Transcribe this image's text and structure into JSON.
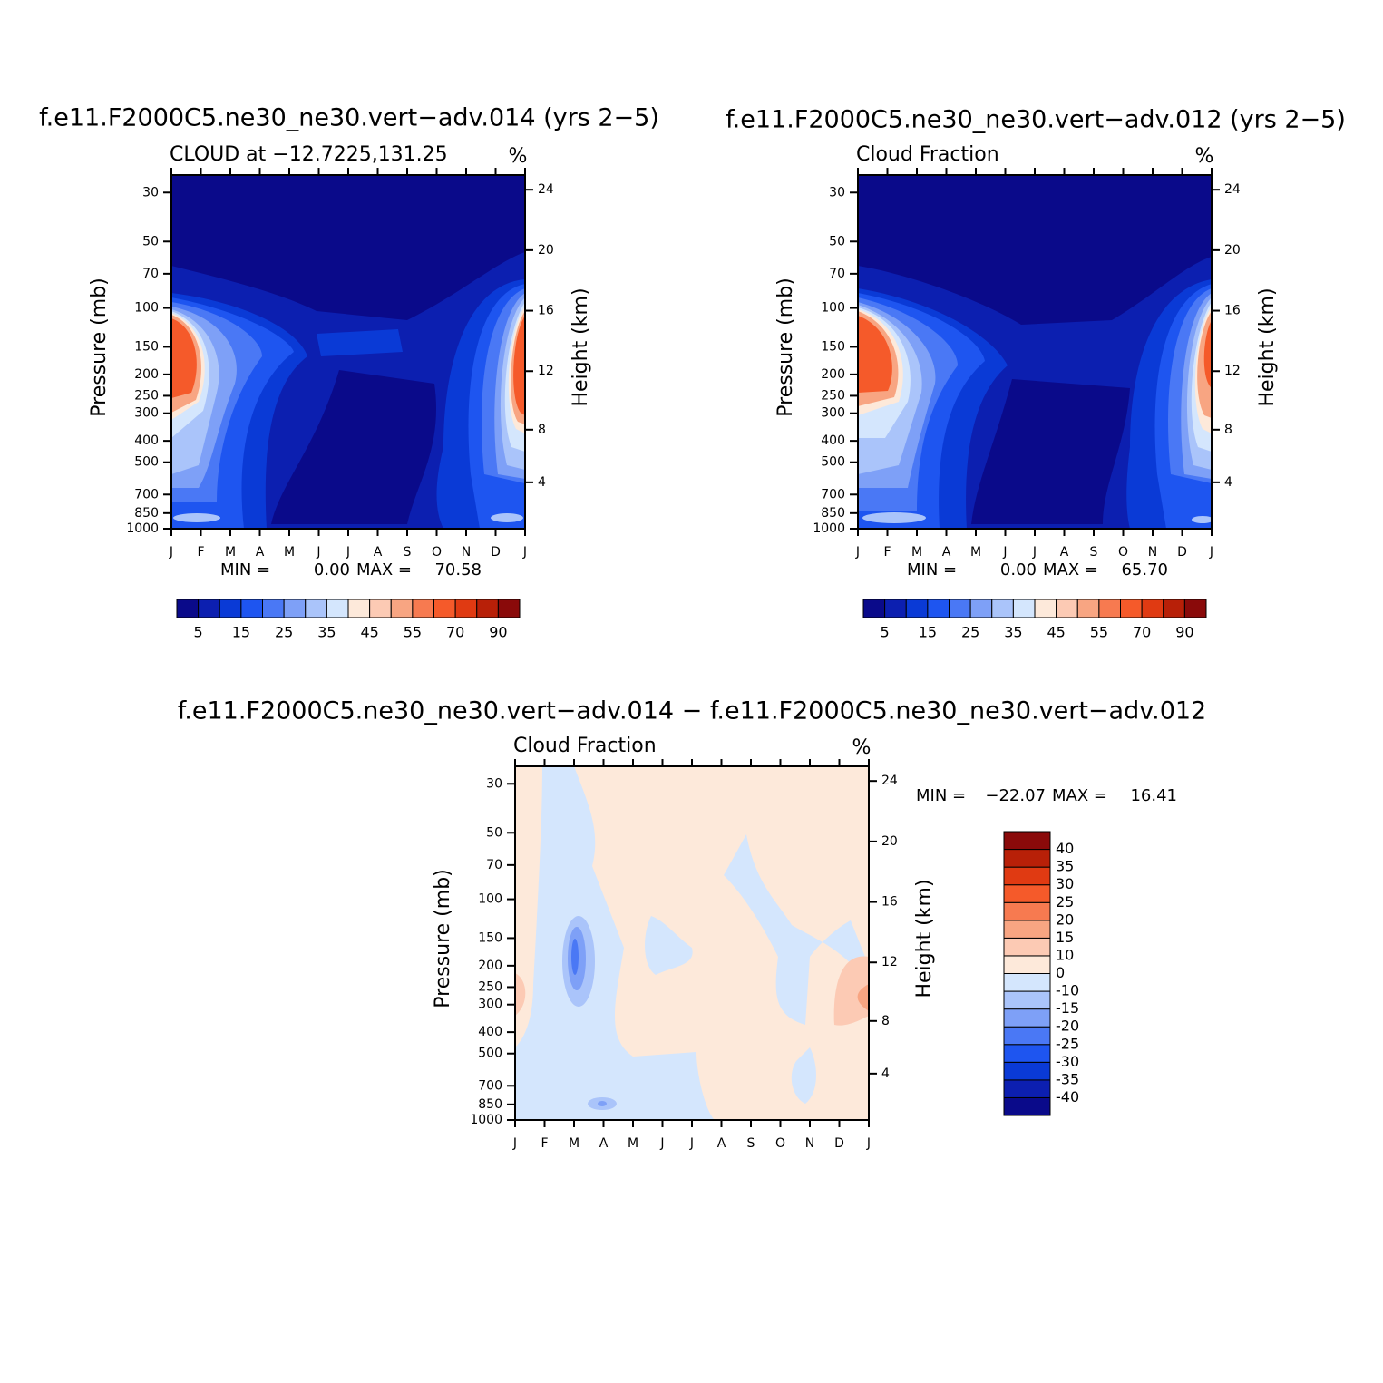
{
  "chart_data": [
    {
      "type": "contour",
      "title": "f.e11.F2000C5.ne30_ne30.vert−adv.014 (yrs 2−5)",
      "subtitle": "CLOUD at −12.7225,131.25",
      "units": "%",
      "categories": [
        "J",
        "F",
        "M",
        "A",
        "M",
        "J",
        "J",
        "A",
        "S",
        "O",
        "N",
        "D",
        "J"
      ],
      "y_label": "Pressure (mb)",
      "y2_label": "Height (km)",
      "log_y": true,
      "ylim": [
        1000,
        25
      ],
      "yticks": [
        30,
        50,
        70,
        100,
        150,
        200,
        250,
        300,
        400,
        500,
        700,
        850,
        1000
      ],
      "y2ticks": [
        4,
        8,
        12,
        16,
        20,
        24
      ],
      "stats": {
        "names": [
          "MIN =",
          "MAX ="
        ],
        "values": [
          0,
          70.58
        ],
        "value_labels": [
          "0.00",
          "70.58"
        ]
      },
      "colorbar": {
        "orientation": "horizontal",
        "colors": [
          "#0a0a8a",
          "#0c1fb0",
          "#0a3ad6",
          "#1e55f0",
          "#4a78f5",
          "#7ea0f7",
          "#aac4fa",
          "#d4e6fd",
          "#fde9da",
          "#fccab4",
          "#f8a582",
          "#f77a50",
          "#f55a2a",
          "#e03a12",
          "#b82008",
          "#8a0a0a"
        ],
        "labels": [
          5,
          15,
          25,
          35,
          45,
          55,
          70,
          90
        ]
      }
    },
    {
      "type": "contour",
      "title": "f.e11.F2000C5.ne30_ne30.vert−adv.012 (yrs 2−5)",
      "subtitle": "Cloud Fraction",
      "units": "%",
      "categories": [
        "J",
        "F",
        "M",
        "A",
        "M",
        "J",
        "J",
        "A",
        "S",
        "O",
        "N",
        "D",
        "J"
      ],
      "y_label": "Pressure (mb)",
      "y2_label": "Height (km)",
      "log_y": true,
      "ylim": [
        1000,
        25
      ],
      "yticks": [
        30,
        50,
        70,
        100,
        150,
        200,
        250,
        300,
        400,
        500,
        700,
        850,
        1000
      ],
      "y2ticks": [
        4,
        8,
        12,
        16,
        20,
        24
      ],
      "stats": {
        "names": [
          "MIN =",
          "MAX ="
        ],
        "values": [
          0,
          65.7
        ],
        "value_labels": [
          "0.00",
          "65.70"
        ]
      },
      "colorbar": {
        "orientation": "horizontal",
        "colors": [
          "#0a0a8a",
          "#0c1fb0",
          "#0a3ad6",
          "#1e55f0",
          "#4a78f5",
          "#7ea0f7",
          "#aac4fa",
          "#d4e6fd",
          "#fde9da",
          "#fccab4",
          "#f8a582",
          "#f77a50",
          "#f55a2a",
          "#e03a12",
          "#b82008",
          "#8a0a0a"
        ],
        "labels": [
          5,
          15,
          25,
          35,
          45,
          55,
          70,
          90
        ]
      }
    },
    {
      "type": "contour",
      "title": "f.e11.F2000C5.ne30_ne30.vert−adv.014 − f.e11.F2000C5.ne30_ne30.vert−adv.012",
      "subtitle": "Cloud Fraction",
      "units": "%",
      "categories": [
        "J",
        "F",
        "M",
        "A",
        "M",
        "J",
        "J",
        "A",
        "S",
        "O",
        "N",
        "D",
        "J"
      ],
      "y_label": "Pressure (mb)",
      "y2_label": "Height (km)",
      "log_y": true,
      "ylim": [
        1000,
        25
      ],
      "yticks": [
        30,
        50,
        70,
        100,
        150,
        200,
        250,
        300,
        400,
        500,
        700,
        850,
        1000
      ],
      "y2ticks": [
        4,
        8,
        12,
        16,
        20,
        24
      ],
      "stats": {
        "names": [
          "MIN =",
          "MAX ="
        ],
        "values": [
          -22.07,
          16.41
        ],
        "value_labels": [
          "−22.07",
          "16.41"
        ]
      },
      "colorbar": {
        "orientation": "vertical",
        "colors": [
          "#0a0a8a",
          "#0c1fb0",
          "#0a3ad6",
          "#1e55f0",
          "#4a78f5",
          "#7ea0f7",
          "#aac4fa",
          "#d4e6fd",
          "#fde9da",
          "#fccab4",
          "#f8a582",
          "#f77a50",
          "#f55a2a",
          "#e03a12",
          "#b82008",
          "#8a0a0a"
        ],
        "labels": [
          -40,
          -35,
          -30,
          -25,
          -20,
          -15,
          -10,
          0,
          10,
          15,
          20,
          25,
          30,
          35,
          40
        ]
      }
    }
  ]
}
